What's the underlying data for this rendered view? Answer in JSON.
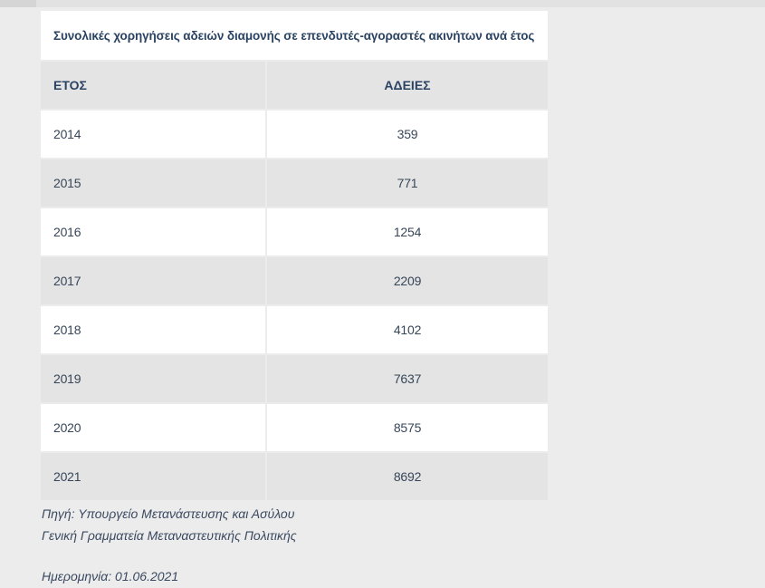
{
  "page": {
    "background": "#ececec",
    "topbar_color": "#e2e2e2",
    "accent_text_color": "#2b4363",
    "data_text_color": "#374659",
    "row_alt_color": "#e4e4e4",
    "row_color": "#ffffff"
  },
  "table": {
    "title": "Συνολικές χορηγήσεις αδειών διαμονής σε επενδυτές-αγοραστές ακινήτων ανά έτος",
    "columns": [
      "ΕΤΟΣ",
      "ΑΔΕΙΕΣ"
    ],
    "rows": [
      {
        "year": "2014",
        "permits": "359"
      },
      {
        "year": "2015",
        "permits": "771"
      },
      {
        "year": "2016",
        "permits": "1254"
      },
      {
        "year": "2017",
        "permits": "2209"
      },
      {
        "year": "2018",
        "permits": "4102"
      },
      {
        "year": "2019",
        "permits": "7637"
      },
      {
        "year": "2020",
        "permits": "8575"
      },
      {
        "year": "2021",
        "permits": "8692"
      }
    ]
  },
  "footer": {
    "source_line1": "Πηγή: Υπουργείο Μετανάστευσης και Ασύλου",
    "source_line2": "Γενική Γραμματεία Μεταναστευτικής Πολιτικής",
    "date_line": "Ημερομηνία: 01.06.2021"
  },
  "chart_data": {
    "type": "table",
    "title": "Συνολικές χορηγήσεις αδειών διαμονής σε επενδυτές-αγοραστές ακινήτων ανά έτος",
    "columns": [
      "ΕΤΟΣ",
      "ΑΔΕΙΕΣ"
    ],
    "categories": [
      "2014",
      "2015",
      "2016",
      "2017",
      "2018",
      "2019",
      "2020",
      "2021"
    ],
    "values": [
      359,
      771,
      1254,
      2209,
      4102,
      7637,
      8575,
      8692
    ],
    "source": "Πηγή: Υπουργείο Μετανάστευσης και Ασύλου — Γενική Γραμματεία Μεταναστευτικής Πολιτικής",
    "date": "01.06.2021"
  }
}
